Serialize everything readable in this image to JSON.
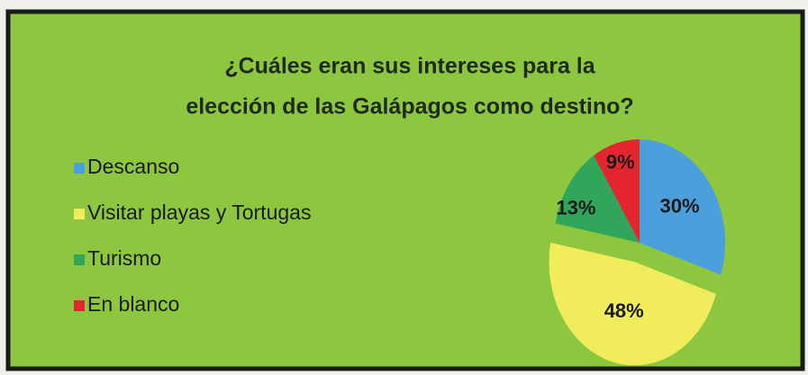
{
  "chart_data": {
    "type": "pie",
    "title": [
      "¿Cuáles eran sus intereses para la",
      "elección de las  Galápagos como destino?"
    ],
    "categories": [
      "Descanso",
      "Visitar playas y Tortugas",
      "Turismo",
      "En blanco"
    ],
    "values": [
      30,
      48,
      13,
      9
    ],
    "value_labels": [
      "30%",
      "48%",
      "13%",
      "9%"
    ],
    "colors": [
      "#4a9fdc",
      "#f0ec5c",
      "#2fa65a",
      "#e3262d"
    ],
    "exploded": [
      false,
      true,
      false,
      false
    ],
    "legend": "left"
  }
}
